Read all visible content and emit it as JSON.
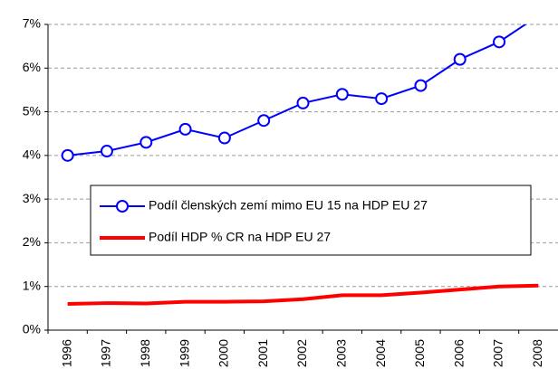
{
  "chart_data": {
    "type": "line",
    "categories": [
      "1996",
      "1997",
      "1998",
      "1999",
      "2000",
      "2001",
      "2002",
      "2003",
      "2004",
      "2005",
      "2006",
      "2007",
      "2008"
    ],
    "series": [
      {
        "name": "Podíl členských zemí mimo EU 15 na HDP EU 27",
        "color": "#0000ff",
        "marker": "circle",
        "values": [
          4.0,
          4.1,
          4.3,
          4.6,
          4.4,
          4.8,
          5.2,
          5.4,
          5.3,
          5.6,
          6.2,
          6.6,
          7.2
        ]
      },
      {
        "name": "Podíl HDP % CR na HDP EU 27",
        "color": "#ff0000",
        "values": [
          0.6,
          0.62,
          0.61,
          0.65,
          0.65,
          0.66,
          0.71,
          0.8,
          0.8,
          0.86,
          0.93,
          1.0,
          1.02
        ]
      }
    ],
    "ylim": [
      0,
      7
    ],
    "yticks": [
      {
        "value": 0,
        "label": "0%"
      },
      {
        "value": 1,
        "label": "1%"
      },
      {
        "value": 2,
        "label": "2%"
      },
      {
        "value": 3,
        "label": "3%"
      },
      {
        "value": 4,
        "label": "4%"
      },
      {
        "value": 5,
        "label": "5%"
      },
      {
        "value": 6,
        "label": "6%"
      },
      {
        "value": 7,
        "label": "7%"
      }
    ],
    "grid": true
  }
}
